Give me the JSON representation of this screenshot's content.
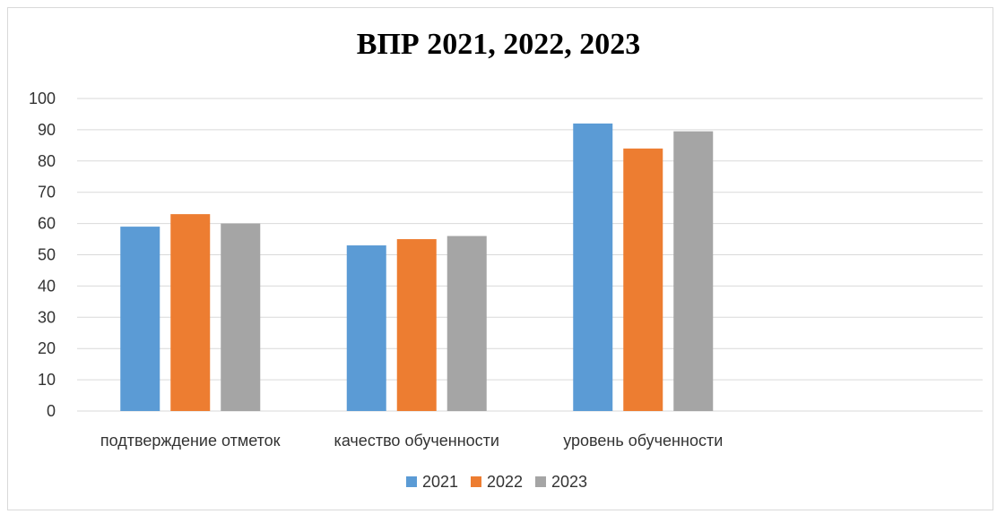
{
  "chart_data": {
    "type": "bar",
    "title": "ВПР 2021, 2022, 2023",
    "xlabel": "",
    "ylabel": "",
    "ylim": [
      0,
      100
    ],
    "yticks": [
      0,
      10,
      20,
      30,
      40,
      50,
      60,
      70,
      80,
      90,
      100
    ],
    "grid": true,
    "legend_position": "bottom",
    "categories": [
      "подтверждение отметок",
      "качество обученности",
      "уровень обученности",
      ""
    ],
    "series": [
      {
        "name": "2021",
        "color": "#5b9bd5",
        "values": [
          59,
          53,
          92,
          null
        ]
      },
      {
        "name": "2022",
        "color": "#ed7d31",
        "values": [
          63,
          55,
          84,
          null
        ]
      },
      {
        "name": "2023",
        "color": "#a5a5a5",
        "values": [
          60,
          56,
          89.5,
          null
        ]
      }
    ]
  }
}
